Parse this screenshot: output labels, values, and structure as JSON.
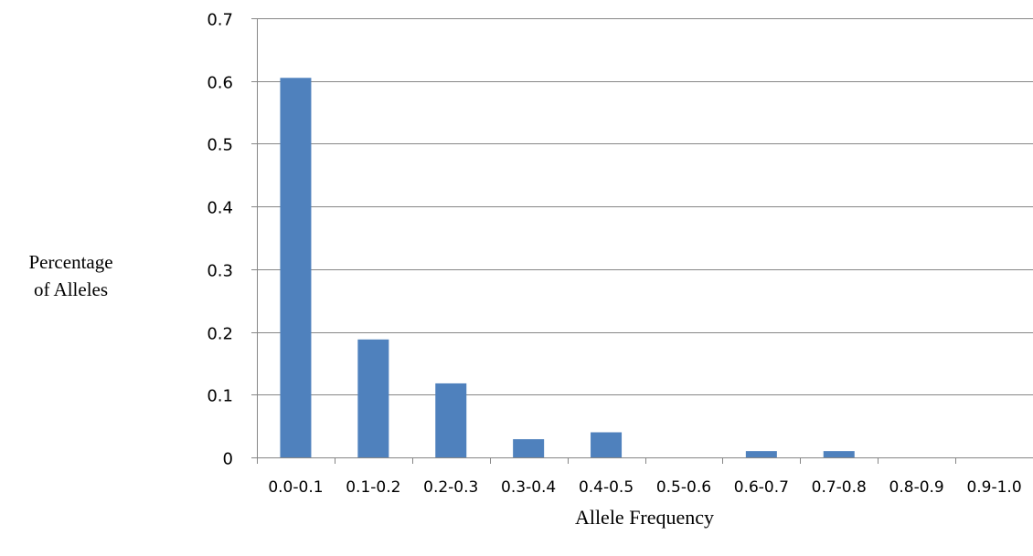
{
  "chart_data": {
    "type": "bar",
    "categories": [
      "0.0-0.1",
      "0.1-0.2",
      "0.2-0.3",
      "0.3-0.4",
      "0.4-0.5",
      "0.5-0.6",
      "0.6-0.7",
      "0.7-0.8",
      "0.8-0.9",
      "0.9-1.0"
    ],
    "values": [
      0.605,
      0.188,
      0.118,
      0.029,
      0.04,
      0,
      0.01,
      0.01,
      0,
      0
    ],
    "title": "",
    "xlabel": "Allele Frequency",
    "ylabel_line1": "Percentage",
    "ylabel_line2": "of Alleles",
    "ylim": [
      0,
      0.7
    ],
    "yticks": [
      "0",
      "0.1",
      "0.2",
      "0.3",
      "0.4",
      "0.5",
      "0.6",
      "0.7"
    ],
    "grid": true,
    "legend": "none",
    "bar_color": "#4f81bd",
    "grid_color": "#868686"
  }
}
